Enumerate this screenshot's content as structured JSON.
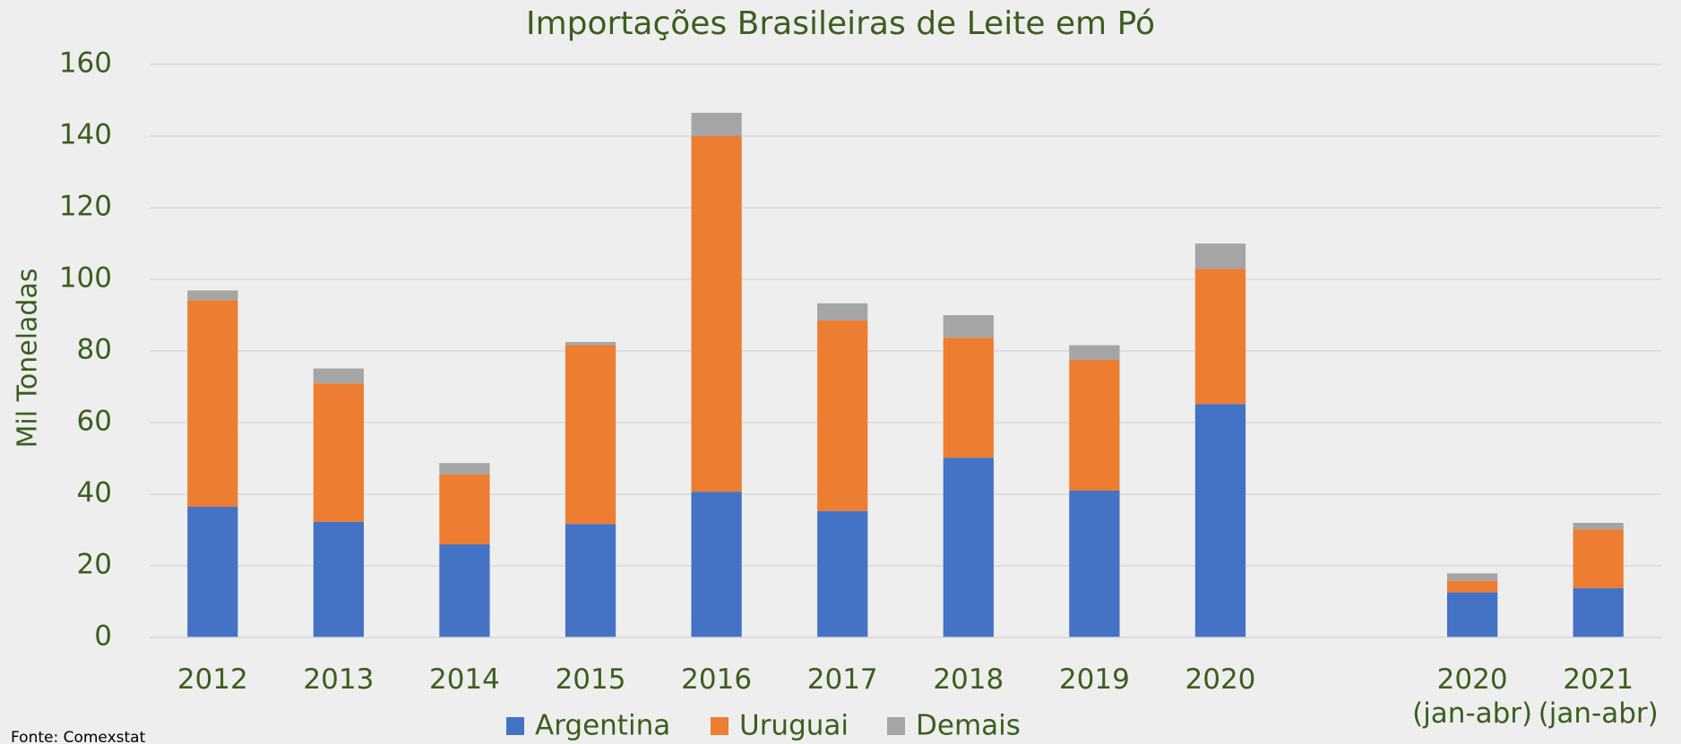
{
  "chart_data": {
    "type": "stacked_bar",
    "title": "Importações Brasileiras de Leite em Pó",
    "y_label": "Mil Toneladas",
    "source": "Fonte: Comexstat",
    "categories": [
      "2012",
      "2013",
      "2014",
      "2015",
      "2016",
      "2017",
      "2018",
      "2019",
      "2020",
      null,
      "2020\n(jan-abr)",
      "2021\n(jan-abr)"
    ],
    "series": [
      {
        "name": "Argentina",
        "color": "#4472c4",
        "values": [
          36.5,
          32.3,
          26,
          31.7,
          40.7,
          35.3,
          50.2,
          41,
          65.2,
          null,
          12.6,
          13.8
        ]
      },
      {
        "name": "Uruguai",
        "color": "#ed7d31",
        "values": [
          57.7,
          38.6,
          19.5,
          49.9,
          99.3,
          53.2,
          33.5,
          36.5,
          37.7,
          null,
          3.2,
          16.4
        ]
      },
      {
        "name": "Demais",
        "color": "#a5a5a5",
        "values": [
          2.7,
          4.2,
          3.2,
          0.9,
          6.5,
          4.8,
          6.3,
          4.1,
          7.1,
          null,
          2.1,
          1.8
        ]
      }
    ],
    "ylim": [
      0,
      160
    ],
    "yticks": [
      0,
      20,
      40,
      60,
      80,
      100,
      120,
      140,
      160
    ],
    "grid": true,
    "legend": "bottom"
  }
}
